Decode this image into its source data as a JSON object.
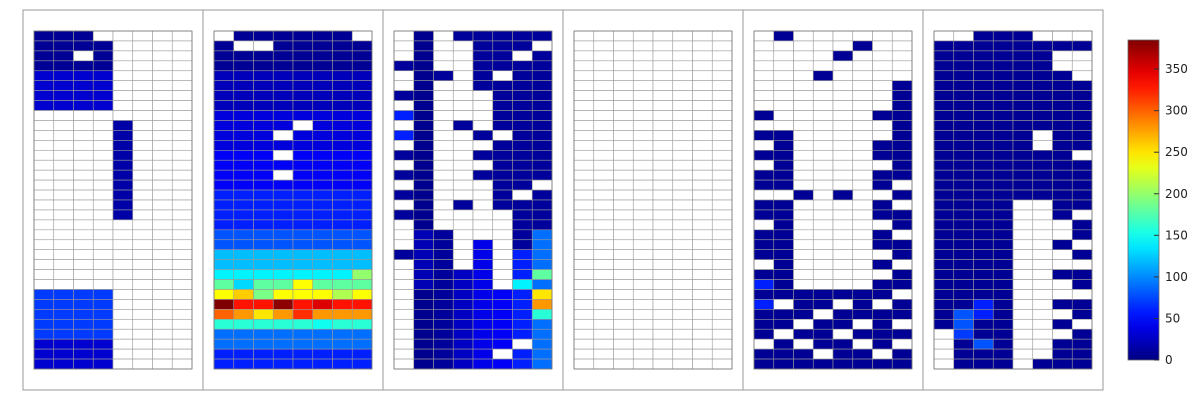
{
  "chart_data": {
    "type": "heatmap",
    "colorbar": {
      "min": 0,
      "max": 385,
      "ticks": [
        "0",
        "50",
        "100",
        "150",
        "200",
        "250",
        "300",
        "350"
      ],
      "colormap": "jet"
    },
    "panels": [
      {
        "cols": 8,
        "rows": 34,
        "segments": [
          [
            0,
            4,
            0,
            4,
            8
          ],
          [
            0,
            4,
            4,
            8,
            30
          ],
          [
            4,
            8,
            0,
            34,
            null
          ],
          [
            4,
            5,
            9,
            19,
            15
          ],
          [
            2,
            3,
            2,
            3,
            null
          ],
          [
            3,
            4,
            0,
            1,
            null
          ],
          [
            1,
            2,
            14,
            15,
            null
          ],
          [
            1,
            2,
            15,
            16,
            null
          ],
          [
            2,
            3,
            17,
            18,
            null
          ],
          [
            2,
            3,
            19,
            20,
            null
          ],
          [
            3,
            4,
            31,
            32,
            null
          ],
          [
            0,
            4,
            26,
            31,
            70
          ],
          [
            0,
            4,
            31,
            34,
            30
          ]
        ]
      },
      {
        "cols": 8,
        "rows": 34,
        "segments": [
          [
            0,
            8,
            0,
            4,
            8
          ],
          [
            0,
            8,
            4,
            8,
            22
          ],
          [
            0,
            8,
            8,
            12,
            35
          ],
          [
            0,
            8,
            12,
            16,
            45
          ],
          [
            0,
            8,
            16,
            20,
            60
          ],
          [
            0,
            8,
            20,
            22,
            80
          ],
          [
            0,
            8,
            22,
            24,
            120
          ],
          [
            0,
            8,
            24,
            25,
            140
          ],
          [
            0,
            8,
            25,
            26,
            180
          ],
          [
            0,
            8,
            26,
            27,
            240
          ],
          [
            0,
            8,
            27,
            28,
            330
          ],
          [
            0,
            8,
            28,
            29,
            280
          ],
          [
            0,
            8,
            29,
            30,
            160
          ],
          [
            0,
            8,
            30,
            32,
            90
          ],
          [
            0,
            8,
            32,
            34,
            60
          ],
          [
            0,
            1,
            0,
            1,
            null
          ],
          [
            1,
            2,
            1,
            2,
            null
          ],
          [
            7,
            8,
            0,
            1,
            null
          ],
          [
            2,
            3,
            1,
            2,
            null
          ],
          [
            3,
            4,
            10,
            11,
            null
          ],
          [
            4,
            5,
            9,
            10,
            null
          ],
          [
            3,
            4,
            12,
            13,
            null
          ],
          [
            3,
            4,
            14,
            15,
            null
          ],
          [
            0,
            1,
            27,
            28,
            385
          ],
          [
            3,
            4,
            27,
            28,
            380
          ],
          [
            5,
            6,
            27,
            28,
            350
          ],
          [
            7,
            8,
            27,
            28,
            330
          ],
          [
            1,
            2,
            26,
            27,
            260
          ],
          [
            4,
            5,
            25,
            26,
            240
          ],
          [
            7,
            8,
            24,
            25,
            200
          ],
          [
            2,
            3,
            26,
            27,
            190
          ],
          [
            0,
            1,
            28,
            29,
            300
          ],
          [
            4,
            5,
            28,
            29,
            320
          ],
          [
            5,
            6,
            29,
            30,
            150
          ],
          [
            6,
            7,
            26,
            27,
            210
          ],
          [
            1,
            2,
            25,
            26,
            130
          ],
          [
            2,
            3,
            28,
            29,
            250
          ]
        ]
      },
      {
        "cols": 8,
        "rows": 34,
        "segments": [
          [
            0,
            1,
            0,
            22,
            null
          ],
          [
            0,
            1,
            22,
            23,
            10
          ],
          [
            0,
            1,
            23,
            34,
            null
          ],
          [
            1,
            2,
            0,
            34,
            6
          ],
          [
            1,
            2,
            20,
            26,
            20
          ],
          [
            2,
            3,
            0,
            2,
            null
          ],
          [
            2,
            3,
            2,
            34,
            10
          ],
          [
            2,
            3,
            2,
            20,
            null
          ],
          [
            3,
            4,
            0,
            1,
            10
          ],
          [
            3,
            4,
            1,
            24,
            null
          ],
          [
            3,
            4,
            24,
            34,
            25
          ],
          [
            4,
            5,
            0,
            6,
            10
          ],
          [
            4,
            5,
            6,
            21,
            null
          ],
          [
            4,
            5,
            21,
            34,
            40
          ],
          [
            5,
            6,
            0,
            34,
            10
          ],
          [
            5,
            6,
            18,
            26,
            null
          ],
          [
            5,
            6,
            26,
            34,
            45
          ],
          [
            6,
            7,
            0,
            34,
            10
          ],
          [
            6,
            7,
            22,
            34,
            60
          ],
          [
            7,
            8,
            0,
            34,
            10
          ],
          [
            7,
            8,
            20,
            34,
            90
          ],
          [
            0,
            1,
            3,
            4,
            10
          ],
          [
            0,
            1,
            6,
            7,
            10
          ],
          [
            0,
            1,
            8,
            9,
            60
          ],
          [
            0,
            1,
            10,
            11,
            60
          ],
          [
            0,
            1,
            12,
            13,
            10
          ],
          [
            0,
            1,
            14,
            15,
            10
          ],
          [
            0,
            1,
            16,
            17,
            10
          ],
          [
            0,
            1,
            18,
            19,
            10
          ],
          [
            2,
            3,
            4,
            5,
            10
          ],
          [
            3,
            4,
            9,
            10,
            10
          ],
          [
            4,
            5,
            10,
            11,
            10
          ],
          [
            4,
            5,
            12,
            13,
            10
          ],
          [
            4,
            5,
            14,
            15,
            10
          ],
          [
            3,
            4,
            17,
            18,
            10
          ],
          [
            5,
            6,
            4,
            5,
            null
          ],
          [
            5,
            6,
            10,
            11,
            null
          ],
          [
            6,
            7,
            2,
            3,
            null
          ],
          [
            7,
            8,
            1,
            2,
            null
          ],
          [
            6,
            7,
            16,
            17,
            null
          ],
          [
            7,
            8,
            15,
            16,
            null
          ],
          [
            7,
            8,
            24,
            25,
            180
          ],
          [
            7,
            8,
            26,
            27,
            250
          ],
          [
            7,
            8,
            27,
            28,
            280
          ],
          [
            7,
            8,
            28,
            29,
            160
          ],
          [
            6,
            7,
            25,
            26,
            140
          ],
          [
            6,
            7,
            31,
            32,
            null
          ],
          [
            5,
            6,
            32,
            33,
            null
          ]
        ]
      },
      {
        "cols": 8,
        "rows": 34,
        "segments": []
      },
      {
        "cols": 8,
        "rows": 34,
        "segments": [
          [
            0,
            1,
            6,
            34,
            8
          ],
          [
            0,
            1,
            6,
            8,
            null
          ],
          [
            0,
            1,
            9,
            10,
            null
          ],
          [
            0,
            1,
            11,
            12,
            null
          ],
          [
            0,
            1,
            13,
            14,
            null
          ],
          [
            0,
            1,
            16,
            17,
            null
          ],
          [
            0,
            1,
            19,
            20,
            null
          ],
          [
            0,
            1,
            23,
            24,
            null
          ],
          [
            0,
            1,
            25,
            26,
            60
          ],
          [
            0,
            1,
            27,
            28,
            60
          ],
          [
            0,
            1,
            31,
            32,
            null
          ],
          [
            1,
            2,
            0,
            1,
            8
          ],
          [
            1,
            2,
            10,
            34,
            8
          ],
          [
            1,
            2,
            16,
            17,
            null
          ],
          [
            1,
            2,
            27,
            28,
            null
          ],
          [
            1,
            2,
            30,
            31,
            null
          ],
          [
            2,
            3,
            16,
            17,
            8
          ],
          [
            2,
            3,
            26,
            34,
            8
          ],
          [
            2,
            3,
            29,
            30,
            null
          ],
          [
            2,
            3,
            31,
            32,
            null
          ],
          [
            3,
            4,
            4,
            5,
            8
          ],
          [
            3,
            4,
            26,
            34,
            8
          ],
          [
            3,
            4,
            28,
            29,
            null
          ],
          [
            3,
            4,
            32,
            33,
            null
          ],
          [
            4,
            5,
            2,
            3,
            8
          ],
          [
            4,
            5,
            16,
            17,
            8
          ],
          [
            4,
            5,
            26,
            34,
            8
          ],
          [
            4,
            5,
            27,
            28,
            null
          ],
          [
            4,
            5,
            30,
            31,
            null
          ],
          [
            5,
            6,
            1,
            2,
            8
          ],
          [
            5,
            6,
            26,
            34,
            8
          ],
          [
            5,
            6,
            29,
            30,
            null
          ],
          [
            5,
            6,
            31,
            32,
            null
          ],
          [
            6,
            7,
            8,
            34,
            8
          ],
          [
            6,
            7,
            9,
            11,
            null
          ],
          [
            6,
            7,
            13,
            14,
            null
          ],
          [
            6,
            7,
            16,
            17,
            null
          ],
          [
            6,
            7,
            19,
            20,
            null
          ],
          [
            6,
            7,
            22,
            23,
            null
          ],
          [
            6,
            7,
            24,
            25,
            null
          ],
          [
            6,
            7,
            27,
            28,
            null
          ],
          [
            6,
            7,
            32,
            33,
            null
          ],
          [
            7,
            8,
            5,
            34,
            8
          ],
          [
            7,
            8,
            15,
            16,
            null
          ],
          [
            7,
            8,
            17,
            18,
            null
          ],
          [
            7,
            8,
            20,
            21,
            null
          ],
          [
            7,
            8,
            23,
            24,
            null
          ],
          [
            7,
            8,
            26,
            27,
            null
          ],
          [
            7,
            8,
            29,
            30,
            null
          ],
          [
            7,
            8,
            31,
            32,
            null
          ]
        ]
      },
      {
        "cols": 8,
        "rows": 34,
        "segments": [
          [
            0,
            8,
            0,
            34,
            8
          ],
          [
            0,
            2,
            0,
            1,
            null
          ],
          [
            5,
            7,
            0,
            1,
            null
          ],
          [
            7,
            8,
            0,
            1,
            null
          ],
          [
            7,
            8,
            2,
            5,
            null
          ],
          [
            0,
            1,
            31,
            34,
            null
          ],
          [
            0,
            1,
            30,
            31,
            null
          ],
          [
            0,
            1,
            33,
            34,
            null
          ],
          [
            1,
            2,
            28,
            29,
            80
          ],
          [
            1,
            2,
            29,
            30,
            80
          ],
          [
            1,
            2,
            30,
            31,
            70
          ],
          [
            2,
            3,
            27,
            29,
            60
          ],
          [
            2,
            3,
            31,
            32,
            80
          ],
          [
            4,
            6,
            17,
            34,
            null
          ],
          [
            4,
            6,
            33,
            34,
            8
          ],
          [
            5,
            6,
            10,
            11,
            null
          ],
          [
            5,
            6,
            11,
            12,
            null
          ],
          [
            6,
            7,
            2,
            3,
            null
          ],
          [
            6,
            7,
            3,
            4,
            null
          ],
          [
            7,
            8,
            12,
            13,
            null
          ],
          [
            6,
            8,
            17,
            34,
            8
          ],
          [
            6,
            7,
            19,
            21,
            null
          ],
          [
            6,
            7,
            22,
            24,
            null
          ],
          [
            6,
            7,
            25,
            27,
            null
          ],
          [
            6,
            7,
            28,
            29,
            null
          ],
          [
            6,
            7,
            30,
            31,
            null
          ],
          [
            7,
            8,
            18,
            19,
            null
          ],
          [
            7,
            8,
            21,
            22,
            null
          ],
          [
            7,
            8,
            23,
            24,
            null
          ],
          [
            7,
            8,
            26,
            27,
            null
          ],
          [
            7,
            8,
            29,
            30,
            null
          ],
          [
            5,
            6,
            26,
            27,
            null
          ],
          [
            5,
            6,
            22,
            23,
            null
          ],
          [
            4,
            5,
            33,
            34,
            null
          ]
        ]
      }
    ]
  }
}
